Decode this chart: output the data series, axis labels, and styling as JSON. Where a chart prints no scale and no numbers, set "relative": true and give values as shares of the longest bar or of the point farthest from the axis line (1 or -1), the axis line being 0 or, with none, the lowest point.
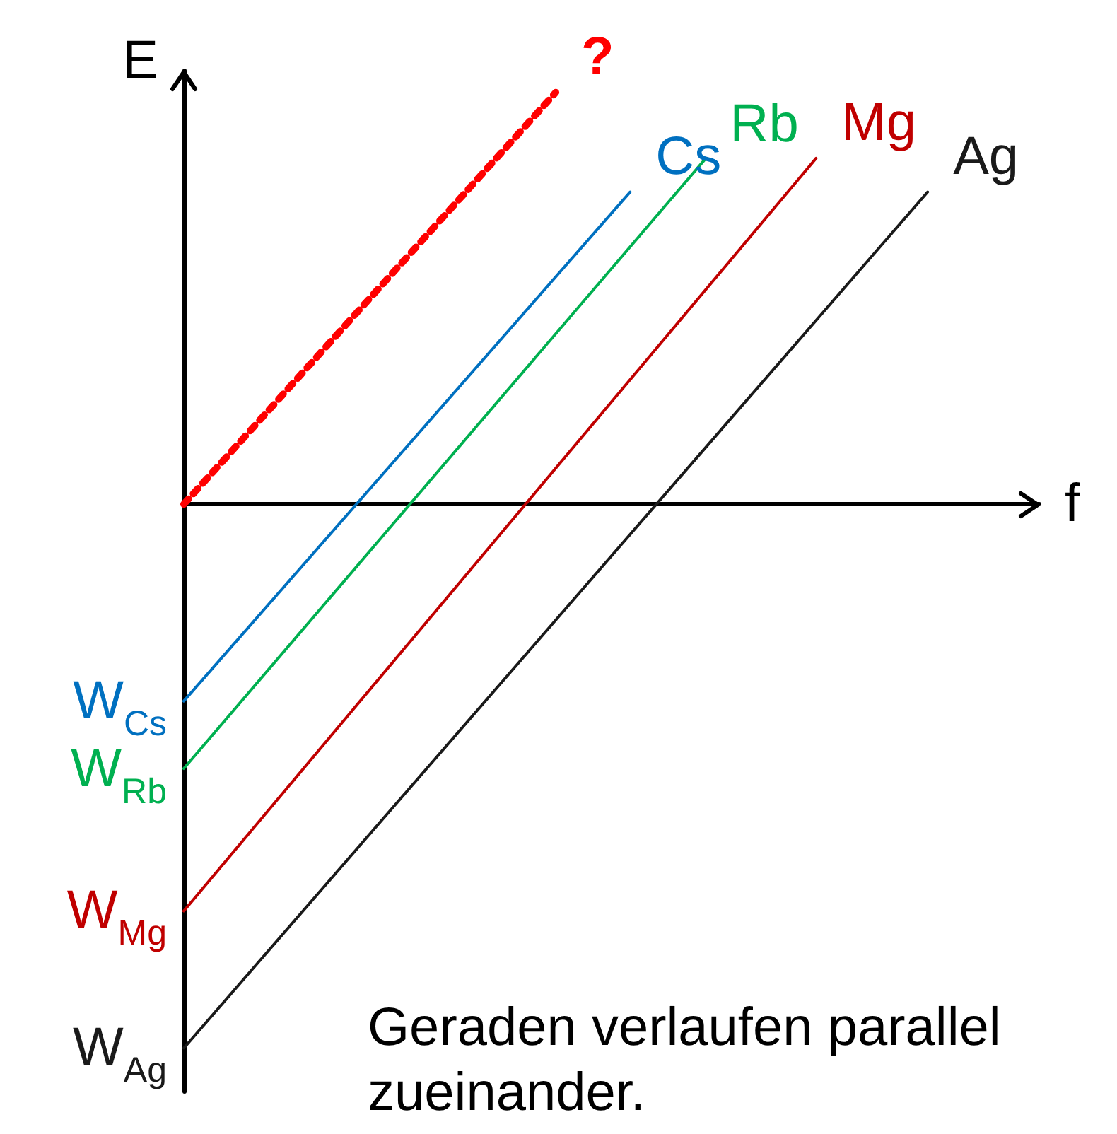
{
  "chart_data": {
    "type": "line",
    "relative": true,
    "xlabel": "f",
    "ylabel": "E",
    "legend": false,
    "grid": false,
    "marker": "none",
    "categories": [
      null,
      null,
      null,
      null,
      null,
      null,
      null,
      null,
      null,
      null,
      null,
      null,
      null,
      null,
      null,
      null,
      null,
      null,
      null,
      null,
      null,
      null,
      null,
      null
    ],
    "series": [
      {
        "name": "?",
        "color": "#ff0000",
        "line_style": "dotted",
        "values": [
          0,
          null,
          null,
          null,
          null,
          null,
          null,
          null,
          null,
          null,
          0.757,
          null,
          null,
          null,
          null,
          null,
          null,
          null,
          null,
          null,
          null,
          null,
          null,
          null
        ]
      },
      {
        "name": "Cs",
        "color": "#0070c0",
        "values": [
          -0.362,
          null,
          null,
          null,
          null,
          null,
          null,
          null,
          null,
          null,
          null,
          null,
          0.574,
          null,
          null,
          null,
          null,
          null,
          null,
          null,
          null,
          null,
          null,
          null
        ]
      },
      {
        "name": "Rb",
        "color": "#00b050",
        "values": [
          -0.486,
          null,
          null,
          null,
          null,
          null,
          null,
          null,
          null,
          null,
          null,
          null,
          null,
          null,
          0.633,
          null,
          null,
          null,
          null,
          null,
          null,
          null,
          null,
          null
        ]
      },
      {
        "name": "Mg",
        "color": "#c00000",
        "values": [
          -0.748,
          null,
          null,
          null,
          null,
          null,
          null,
          null,
          null,
          null,
          null,
          null,
          null,
          null,
          null,
          null,
          null,
          0.636,
          null,
          null,
          null,
          null,
          null,
          null
        ]
      },
      {
        "name": "Ag",
        "color": "#1a1a1a",
        "values": [
          -1,
          null,
          null,
          null,
          null,
          null,
          null,
          null,
          null,
          null,
          null,
          null,
          null,
          null,
          null,
          null,
          null,
          null,
          null,
          null,
          0.574,
          null,
          null,
          null
        ]
      }
    ],
    "annotations": [
      "W$_{Cs}$",
      "W$_{Rb}$",
      "W$_{Mg}$",
      "W$_{Ag}$",
      "Geraden verlaufen parallel zueinander."
    ]
  }
}
